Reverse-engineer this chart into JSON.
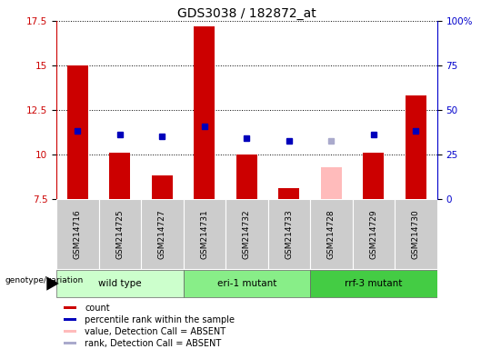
{
  "title": "GDS3038 / 182872_at",
  "samples": [
    "GSM214716",
    "GSM214725",
    "GSM214727",
    "GSM214731",
    "GSM214732",
    "GSM214733",
    "GSM214728",
    "GSM214729",
    "GSM214730"
  ],
  "bar_values": [
    15.0,
    10.1,
    8.8,
    17.2,
    10.0,
    8.1,
    9.3,
    10.1,
    13.3
  ],
  "bar_colors": [
    "#cc0000",
    "#cc0000",
    "#cc0000",
    "#cc0000",
    "#cc0000",
    "#cc0000",
    "#ffbbbb",
    "#cc0000",
    "#cc0000"
  ],
  "rank_values": [
    11.3,
    11.1,
    11.0,
    11.6,
    10.9,
    10.75,
    10.75,
    11.1,
    11.3
  ],
  "rank_colors": [
    "#0000bb",
    "#0000bb",
    "#0000bb",
    "#0000bb",
    "#0000bb",
    "#0000bb",
    "#aaaacc",
    "#0000bb",
    "#0000bb"
  ],
  "ylim_left": [
    7.5,
    17.5
  ],
  "ylim_right": [
    0,
    100
  ],
  "yticks_left": [
    7.5,
    10.0,
    12.5,
    15.0,
    17.5
  ],
  "yticks_right": [
    0,
    25,
    50,
    75,
    100
  ],
  "ytick_labels_right": [
    "0",
    "25",
    "50",
    "75",
    "100%"
  ],
  "groups": [
    {
      "label": "wild type",
      "start": 0,
      "end": 3,
      "color": "#ccffcc"
    },
    {
      "label": "eri-1 mutant",
      "start": 3,
      "end": 6,
      "color": "#88ee88"
    },
    {
      "label": "rrf-3 mutant",
      "start": 6,
      "end": 9,
      "color": "#44cc44"
    }
  ],
  "genotype_label": "genotype/variation",
  "bar_width": 0.5,
  "legend_items": [
    {
      "color": "#cc0000",
      "label": "count",
      "marker": "s"
    },
    {
      "color": "#0000bb",
      "label": "percentile rank within the sample",
      "marker": "s"
    },
    {
      "color": "#ffbbbb",
      "label": "value, Detection Call = ABSENT",
      "marker": "s"
    },
    {
      "color": "#aaaacc",
      "label": "rank, Detection Call = ABSENT",
      "marker": "s"
    }
  ],
  "left_axis_color": "#cc0000",
  "right_axis_color": "#0000cc"
}
